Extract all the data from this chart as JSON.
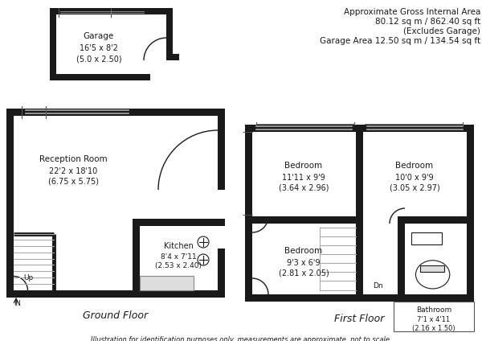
{
  "bg_color": "#ffffff",
  "wall_color": "#1a1a1a",
  "text_color": "#1a1a1a",
  "info_text_line1": "Approximate Gross Internal Area",
  "info_text_line2": "80.12 sq m / 862.40 sq ft",
  "info_text_line3": "(Excludes Garage)",
  "info_text_line4": "Garage Area 12.50 sq m / 134.54 sq ft",
  "garage_label": "Garage",
  "garage_dim": "16'5 x 8'2",
  "garage_dim2": "(5.0 x 2.50)",
  "reception_label": "Reception Room",
  "reception_dim": "22'2 x 18'10",
  "reception_dim2": "(6.75 x 5.75)",
  "kitchen_label": "Kitchen",
  "kitchen_dim": "8'4 x 7'11",
  "kitchen_dim2": "(2.53 x 2.40)",
  "bed1_label": "Bedroom",
  "bed1_dim": "11'11 x 9'9",
  "bed1_dim2": "(3.64 x 2.96)",
  "bed2_label": "Bedroom",
  "bed2_dim": "10'0 x 9'9",
  "bed2_dim2": "(3.05 x 2.97)",
  "bed3_label": "Bedroom",
  "bed3_dim": "9'3 x 6'9",
  "bed3_dim2": "(2.81 x 2.05)",
  "bath_label": "Bathroom",
  "bath_dim": "7'1 x 4'11",
  "bath_dim2": "(2.16 x 1.50)",
  "ground_floor_label": "Ground Floor",
  "first_floor_label": "First Floor",
  "footer_text": "Illustration for identification purposes only, measurements are approximate, not to scale.",
  "up_label": "Up",
  "in_label": "IN",
  "dn_label": "Dn"
}
